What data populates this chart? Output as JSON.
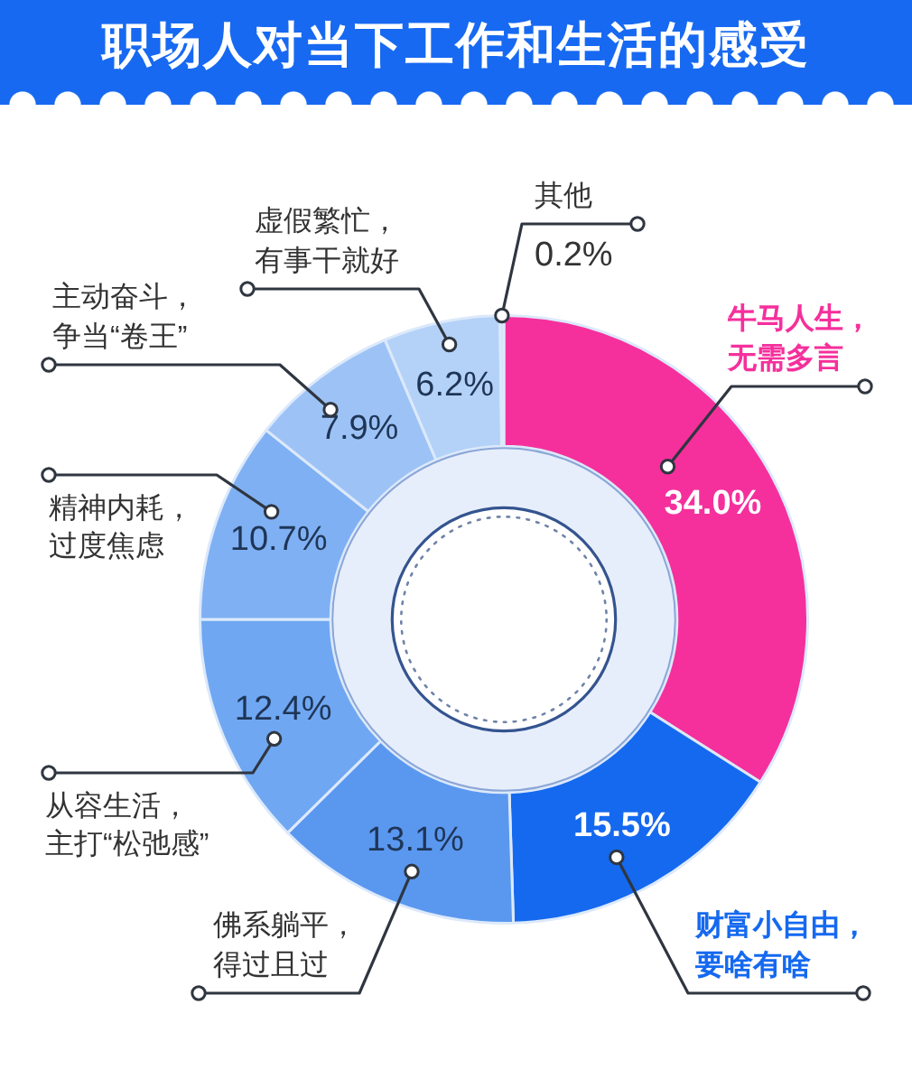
{
  "chart_data": {
    "type": "donut",
    "title": "职场人对当下工作和生活的感受",
    "categories": [
      "牛马人生，无需多言",
      "财富小自由，要啥有啥",
      "佛系躺平，得过且过",
      "从容生活，主打“松弛感”",
      "精神内耗，过度焦虑",
      "主动奋斗，争当“卷王”",
      "虚假繁忙，有事干就好",
      "其他"
    ],
    "values": [
      34.0,
      15.5,
      13.1,
      12.4,
      10.7,
      7.9,
      6.2,
      0.2
    ],
    "value_labels": [
      "34.0%",
      "15.5%",
      "13.1%",
      "12.4%",
      "10.7%",
      "7.9%",
      "6.2%",
      "0.2%"
    ],
    "colors": [
      "#f5309c",
      "#1569ef",
      "#5a98f0",
      "#6fa7f2",
      "#7fb0f3",
      "#9dc3f6",
      "#b4d2f8",
      "#cfe0fa"
    ]
  }
}
